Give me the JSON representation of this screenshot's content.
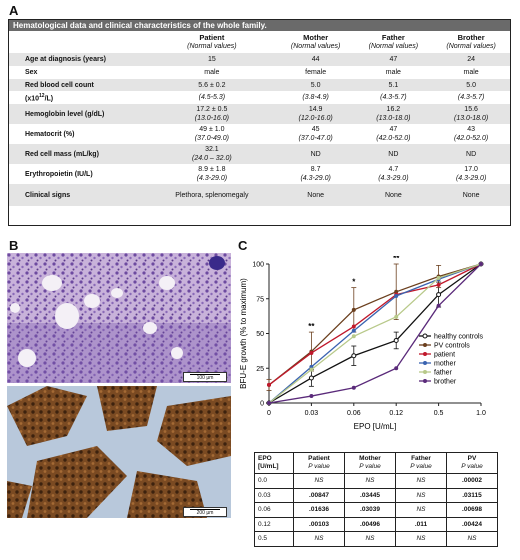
{
  "panel_a": {
    "letter": "A",
    "caption": "Hematological data and clinical characteristics of the whole family.",
    "columns": [
      {
        "name": "Patient",
        "sub": "(Normal values)"
      },
      {
        "name": "Mother",
        "sub": "(Normal values)"
      },
      {
        "name": "Father",
        "sub": "(Normal values)"
      },
      {
        "name": "Brother",
        "sub": "(Normal values)"
      }
    ],
    "rows": {
      "age": {
        "label": "Age at diagnosis (years)",
        "values": [
          "15",
          "44",
          "47",
          "24"
        ]
      },
      "sex": {
        "label": "Sex",
        "values": [
          "male",
          "female",
          "male",
          "male"
        ]
      },
      "rbc": {
        "label": "Red blood cell count",
        "label2": "(x10",
        "label2_sup": "12",
        "label2_end": "/L)",
        "values": [
          "5.6 ± 0.2",
          "5.0",
          "5.1",
          "5.0"
        ],
        "normals": [
          "(4.5-5.3)",
          "(3.8-4.9)",
          "(4.3-5.7)",
          "(4.3-5.7)"
        ]
      },
      "hb": {
        "label": "Hemoglobin level (g/dL)",
        "values": [
          "17.2 ± 0.5",
          "14.9",
          "16.2",
          "15.6"
        ],
        "normals": [
          "(13.0-16.0)",
          "(12.0-16.0)",
          "(13.0-18.0)",
          "(13.0-18.0)"
        ]
      },
      "hct": {
        "label": "Hematocrit (%)",
        "values": [
          "49 ± 1.0",
          "45",
          "47",
          "43"
        ],
        "normals": [
          "(37.0-49.0)",
          "(37.0-47.0)",
          "(42.0-52.0)",
          "(42.0-52.0)"
        ]
      },
      "rcm": {
        "label": "Red cell mass (mL/kg)",
        "values": [
          "32.1",
          "ND",
          "ND",
          "ND"
        ],
        "normals": [
          "(24.0 – 32.0)",
          "",
          "",
          ""
        ]
      },
      "epo": {
        "label": "Erythropoietin (IU/L)",
        "values": [
          "8.9 ± 1.8",
          "8.7",
          "4.7",
          "17.0"
        ],
        "normals": [
          "(4.3-29.0)",
          "(4.3-29.0)",
          "(4.3-29.0)",
          "(4.3-29.0)"
        ]
      },
      "clin": {
        "label": "Clinical signs",
        "values": [
          "Plethora, splenomegaly",
          "None",
          "None",
          "None"
        ]
      }
    }
  },
  "panel_b": {
    "letter": "B",
    "scale_top": "100 µm",
    "scale_bottom": "200 µm"
  },
  "panel_c": {
    "letter": "C",
    "colors": {
      "healthy controls": "#111111",
      "PV controls": "#6b3f1e",
      "patient": "#c0182b",
      "mother": "#3a63b0",
      "father": "#b8c98a",
      "brother": "#5a2a7a"
    }
  },
  "chart_data": {
    "type": "line",
    "xlabel": "EPO [U/mL]",
    "ylabel": "BFU-E growth (% to maximum)",
    "categories": [
      "0",
      "0.03",
      "0.06",
      "0.12",
      "0.5",
      "1.0"
    ],
    "ylim": [
      0,
      100
    ],
    "yticks": [
      "0",
      "25",
      "50",
      "75",
      "100"
    ],
    "legend_position": "right",
    "significance": [
      {
        "category": "0.03",
        "label": "**"
      },
      {
        "category": "0.06",
        "label": "*"
      },
      {
        "category": "0.12",
        "label": "**"
      }
    ],
    "series": [
      {
        "name": "healthy controls",
        "values": [
          0,
          18,
          34,
          45,
          78,
          100
        ],
        "err": [
          0,
          6,
          7,
          6,
          9,
          0
        ]
      },
      {
        "name": "PV controls",
        "values": [
          13,
          37,
          67,
          80,
          91,
          100
        ],
        "err": [
          4,
          14,
          16,
          20,
          8,
          0
        ]
      },
      {
        "name": "patient",
        "values": [
          13,
          36,
          55,
          78,
          85,
          100
        ]
      },
      {
        "name": "mother",
        "values": [
          0,
          26,
          52,
          77,
          89,
          100
        ]
      },
      {
        "name": "father",
        "values": [
          0,
          24,
          48,
          62,
          90,
          100
        ]
      },
      {
        "name": "brother",
        "values": [
          0,
          5,
          11,
          25,
          70,
          100
        ]
      }
    ]
  },
  "p_table": {
    "headers": [
      {
        "top": "EPO",
        "bottom": "[U/mL]"
      },
      {
        "top": "Patient",
        "bottom": "P value"
      },
      {
        "top": "Mother",
        "bottom": "P value"
      },
      {
        "top": "Father",
        "bottom": "P value"
      },
      {
        "top": "PV",
        "bottom": "P value"
      }
    ],
    "rows": [
      [
        "0.0",
        "NS",
        "NS",
        "NS",
        ".00002"
      ],
      [
        "0.03",
        ".00847",
        ".03445",
        "NS",
        ".03115"
      ],
      [
        "0.06",
        ".01636",
        ".03039",
        "NS",
        ".00698"
      ],
      [
        "0.12",
        ".00103",
        ".00496",
        ".011",
        ".00424"
      ],
      [
        "0.5",
        "NS",
        "NS",
        "NS",
        "NS"
      ]
    ]
  }
}
